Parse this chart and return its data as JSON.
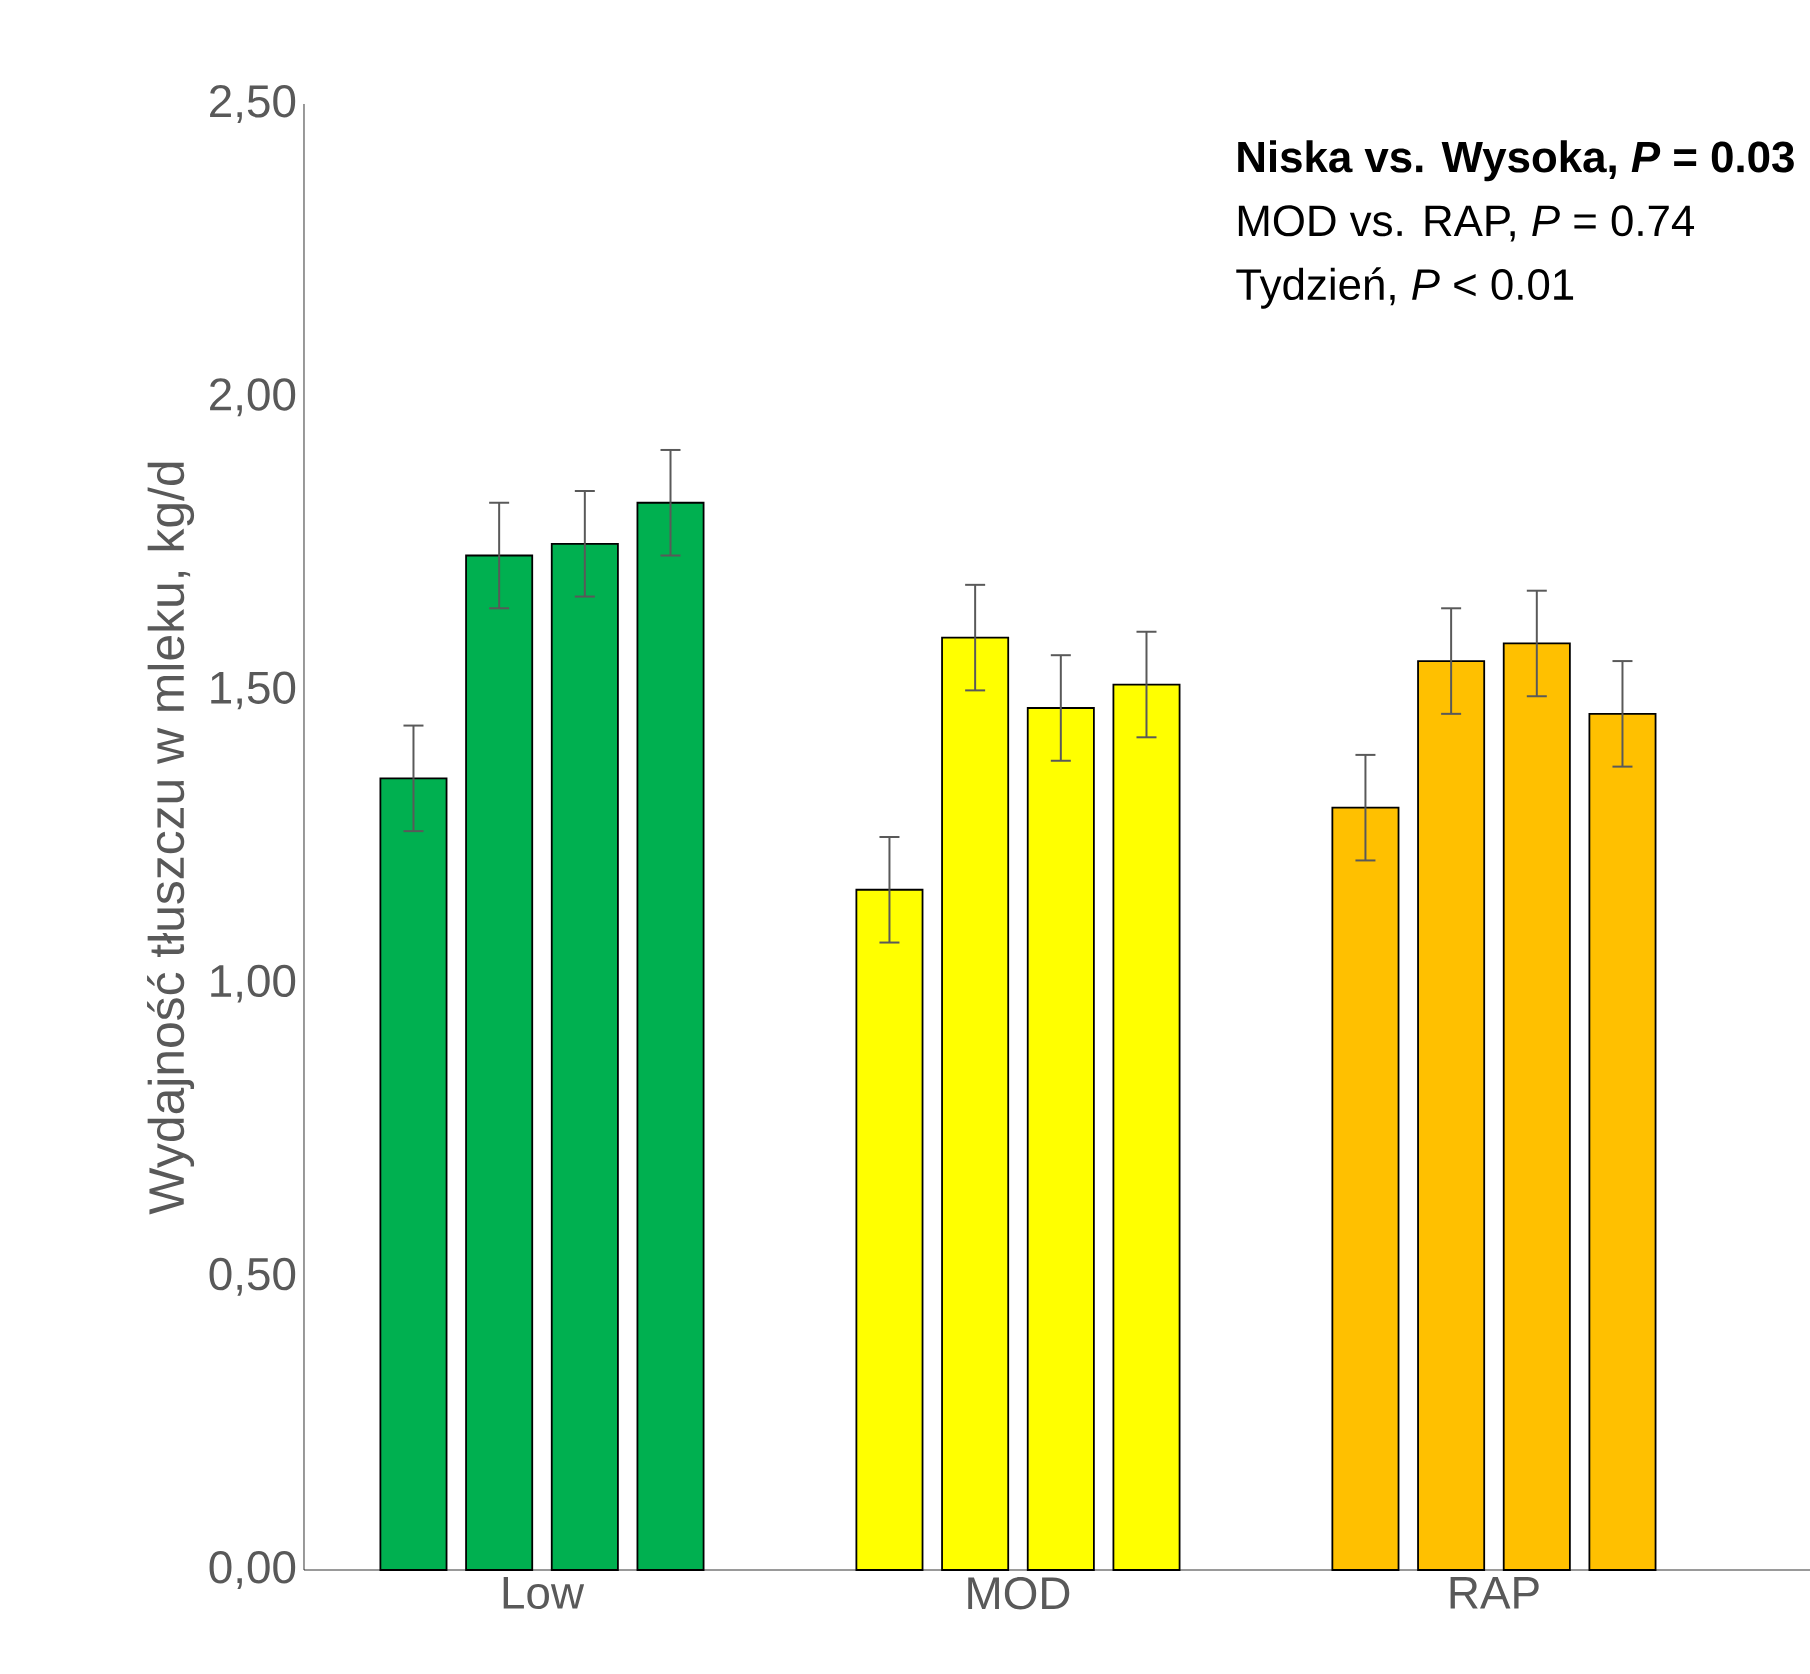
{
  "chart_data": {
    "type": "bar",
    "ylabel": "Wydajność tłuszczu w mleku, kg/d",
    "categories": [
      "Low",
      "MOD",
      "RAP"
    ],
    "series": [
      {
        "colors": [
          "#00b050",
          "#ffff00",
          "#ffc000"
        ],
        "values": [
          1.35,
          1.16,
          1.3
        ],
        "errors": [
          0.09,
          0.09,
          0.09
        ]
      },
      {
        "colors": [
          "#00b050",
          "#ffff00",
          "#ffc000"
        ],
        "values": [
          1.73,
          1.59,
          1.55
        ],
        "errors": [
          0.09,
          0.09,
          0.09
        ]
      },
      {
        "colors": [
          "#00b050",
          "#ffff00",
          "#ffc000"
        ],
        "values": [
          1.75,
          1.47,
          1.58
        ],
        "errors": [
          0.09,
          0.09,
          0.09
        ]
      },
      {
        "colors": [
          "#00b050",
          "#ffff00",
          "#ffc000"
        ],
        "values": [
          1.82,
          1.51,
          1.46
        ],
        "errors": [
          0.09,
          0.09,
          0.09
        ]
      }
    ],
    "ylim": [
      0,
      2.5
    ],
    "yticks": [
      {
        "value": 0,
        "label": "0,00"
      },
      {
        "value": 0.5,
        "label": "0,50"
      },
      {
        "value": 1,
        "label": "1,00"
      },
      {
        "value": 1.5,
        "label": "1,50"
      },
      {
        "value": 2,
        "label": "2,00"
      },
      {
        "value": 2.5,
        "label": "2,50"
      }
    ],
    "grid": false,
    "annotations": [
      "Niska vs. Wysoka, *P* = 0.03",
      "MOD vs. RAP, *P* = 0.74",
      "Tydzień, *P* < 0.01"
    ]
  }
}
